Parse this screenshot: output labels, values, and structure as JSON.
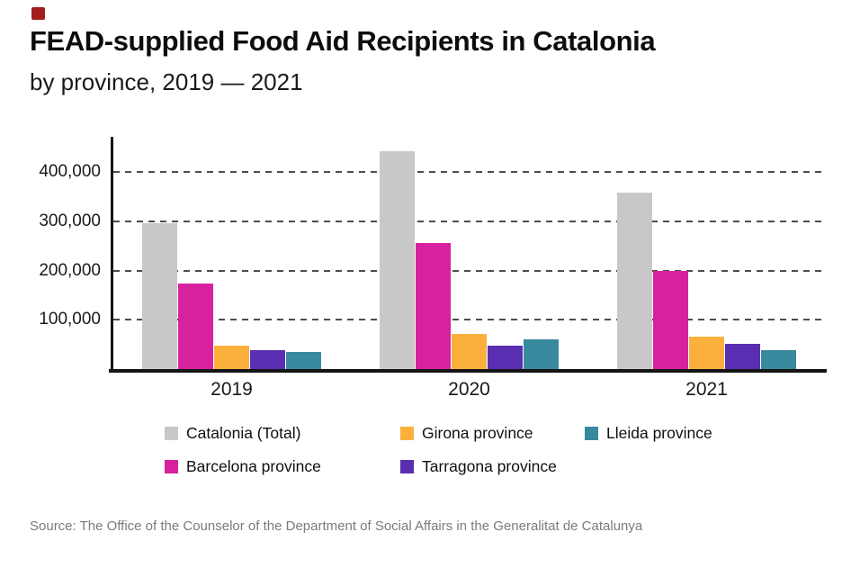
{
  "logo": {
    "color": "#a31d1d"
  },
  "header": {
    "title": "FEAD-supplied Food Aid Recipients in Catalonia",
    "subtitle": "by province, 2019 — 2021"
  },
  "chart_data": {
    "type": "bar",
    "title": "FEAD-supplied Food Aid Recipients in Catalonia",
    "subtitle": "by province, 2019 — 2021",
    "categories": [
      "2019",
      "2020",
      "2021"
    ],
    "series": [
      {
        "name": "Catalonia (Total)",
        "color": "#c8c8c8",
        "values": [
          297000,
          443000,
          358000
        ]
      },
      {
        "name": "Barcelona province",
        "color": "#d8219e",
        "values": [
          174000,
          256000,
          200000
        ]
      },
      {
        "name": "Girona province",
        "color": "#fbb03d",
        "values": [
          47000,
          72000,
          65000
        ]
      },
      {
        "name": "Tarragona province",
        "color": "#5a2eb0",
        "values": [
          38000,
          47000,
          52000
        ]
      },
      {
        "name": "Lleida province",
        "color": "#38899e",
        "values": [
          35000,
          60000,
          38000
        ]
      }
    ],
    "xlabel": "",
    "ylabel": "",
    "ylim": [
      0,
      470000
    ],
    "yticks": [
      100000,
      200000,
      300000,
      400000
    ],
    "ytick_labels": [
      "100,000",
      "200,000",
      "300,000",
      "400,000"
    ],
    "grid": "horizontal-dashed",
    "legend_position": "bottom",
    "legend_order": [
      0,
      2,
      4,
      1,
      3
    ]
  },
  "source": {
    "text": "Source: The Office of the Counselor of the Department of Social Affairs in the Generalitat de Catalunya"
  }
}
